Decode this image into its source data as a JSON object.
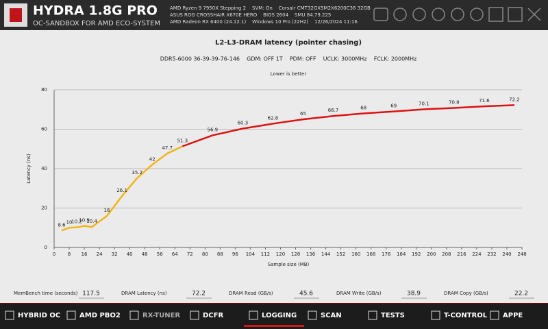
{
  "header": {
    "title": "HYDRA 1.8G PRO",
    "subtitle": "OC-SANDBOX FOR AMD ECO-SYSTEM",
    "info": [
      "AMD Ryzen 9 7950X Stepping 2    SVM: On    Corsair CMT32GX5M2X6200C36 32GB",
      "ASUS ROG CROSSHAIR X670E HERO    BIOS 2604    SMU 84.79.225",
      "AMD Radeon RX 6400 (24.12.1)    Windows 10 Pro (22H2)    12/26/2024 11:16"
    ]
  },
  "chart_data": {
    "type": "line",
    "title": "L2-L3-DRAM latency (pointer chasing)",
    "subtitle": "DDR5-6000 36-39-39-76-146    GDM: OFF 1T    PDM: OFF    UCLK: 3000MHz    FCLK: 2000MHz",
    "note": "Lower is better",
    "x_label": "Sample size (MB)",
    "y_label": "Latency (ns)",
    "series": [
      {
        "color": "#f2b318",
        "x": [
          4,
          8,
          12,
          16,
          20,
          28,
          36,
          44,
          52,
          60,
          68
        ],
        "values": [
          8.6,
          10,
          10.2,
          10.9,
          10.4,
          16,
          26.1,
          35.2,
          42,
          47.7,
          51.3
        ]
      },
      {
        "color": "#dd1111",
        "x": [
          84,
          100,
          116,
          132,
          148,
          164,
          180,
          196,
          212,
          228,
          244
        ],
        "values": [
          56.9,
          60.3,
          62.8,
          65,
          66.7,
          68,
          69,
          70.1,
          70.8,
          71.6,
          72.2
        ]
      }
    ],
    "xlim": [
      0,
      248
    ],
    "xticks": [
      0,
      8,
      16,
      24,
      32,
      40,
      48,
      56,
      64,
      72,
      80,
      88,
      96,
      104,
      112,
      120,
      128,
      136,
      144,
      152,
      160,
      168,
      176,
      184,
      192,
      200,
      208,
      216,
      224,
      232,
      240,
      248
    ],
    "ylim": [
      0,
      80
    ],
    "yticks": [
      0,
      20,
      40,
      60,
      80
    ],
    "grid": true
  },
  "stats": [
    {
      "label": "MemBench time (seconds)",
      "value": 117.5
    },
    {
      "label": "DRAM Latency (ns)",
      "value": 72.2
    },
    {
      "label": "DRAM Read (GB/s)",
      "value": 45.6
    },
    {
      "label": "DRAM Write (GB/s)",
      "value": 38.9
    },
    {
      "label": "DRAM Copy (GB/s)",
      "value": 22.2
    }
  ],
  "nav": [
    "HYBRID OC",
    "AMD PBO2",
    "RX-TUNER",
    "DCFR",
    "LOGGING",
    "SCAN",
    "TESTS",
    "T-CONTROL",
    "APPE"
  ]
}
